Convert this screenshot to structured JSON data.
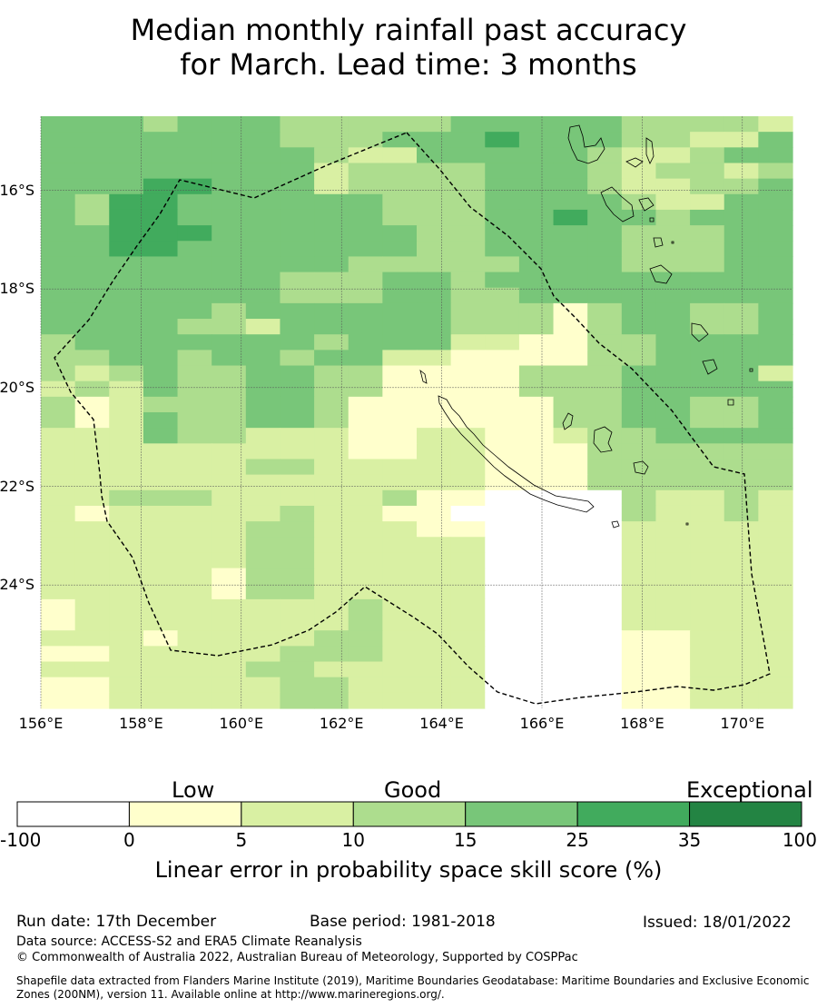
{
  "title": {
    "line1": "Median monthly rainfall past accuracy",
    "line2": "for March. Lead time: 3 months"
  },
  "map": {
    "lon_min": 156.0,
    "lon_max": 171.0,
    "lat_min": -26.5,
    "lat_max": -14.5,
    "lat_ticks": [
      {
        "value": -16,
        "label": "16°S"
      },
      {
        "value": -18,
        "label": "18°S"
      },
      {
        "value": -20,
        "label": "20°S"
      },
      {
        "value": -22,
        "label": "22°S"
      },
      {
        "value": -24,
        "label": "24°S"
      }
    ],
    "lon_ticks": [
      {
        "value": 156,
        "label": "156°E"
      },
      {
        "value": 158,
        "label": "158°E"
      },
      {
        "value": 160,
        "label": "160°E"
      },
      {
        "value": 162,
        "label": "162°E"
      },
      {
        "value": 164,
        "label": "164°E"
      },
      {
        "value": 166,
        "label": "166°E"
      },
      {
        "value": 168,
        "label": "168°E"
      },
      {
        "value": 170,
        "label": "170°E"
      }
    ],
    "grid_legend": "0 = below 0 (white), 1 = 0-5, 2 = 5-10, 3 = 10-15, 4 = 15-25, 5 = 25-35, 6 = 35-100",
    "grid": [
      "4443444333334444433332",
      "4444444333444544433224",
      "4444444432244444322344",
      "4444444423333444323323",
      "4445544423333444322334",
      "4355444444333444432244",
      "4355444444333445443444",
      "4455544444433444433344",
      "4455444444433444433344",
      "4444444443333344433344",
      "4444444333443444444444",
      "4444444333443344444444",
      "4444434444443331344334",
      "4444332444443331344334",
      "3444444434442211334444",
      "3344344344221111334444",
      "3234334433111133344442",
      "2324334433111133344444",
      "3123334431111113344334",
      "3124334431111113344334",
      "2224332221122112334444",
      "2222222221122111333333",
      "2222223322222111333333",
      "2222222222222111333333",
      "2233322222311000032232",
      "2122222322110000032232",
      "2222223322211000022222",
      "2222223322222000022222",
      "2222223322222000022222",
      "2222213322222000022222",
      "2222213322222000022222",
      "1222222223222000022222",
      "1222222223222000022222",
      "2221222233222000011222",
      "1122222333222000011222",
      "2222223322222000011222",
      "1122222332222000011222",
      "1122222332222000011222"
    ]
  },
  "colorbar": {
    "categories": [
      "Low",
      "Good",
      "Exceptional"
    ],
    "ticks": [
      "-100",
      "0",
      "5",
      "10",
      "15",
      "25",
      "35",
      "100"
    ],
    "colors": [
      "#ffffff",
      "#ffffcc",
      "#d9f0a3",
      "#addd8e",
      "#78c679",
      "#41ab5d",
      "#238443"
    ],
    "label": "Linear error in probability space skill score (%)"
  },
  "footer": {
    "run_date": "Run date: 17th December",
    "base_period": "Base period: 1981-2018",
    "issued": "Issued: 18/01/2022",
    "data_source": "Data source: ACCESS-S2 and ERA5 Climate Reanalysis",
    "copyright": "© Commonwealth of Australia 2022, Australian Bureau of Meteorology, Supported by COSPPac",
    "shapefile_line1": "Shapefile data extracted from Flanders Marine Institute (2019), Maritime Boundaries Geodatabase: Maritime Boundaries and Exclusive Economic",
    "shapefile_line2": "Zones (200NM), version 11. Available online at http://www.marineregions.org/."
  }
}
